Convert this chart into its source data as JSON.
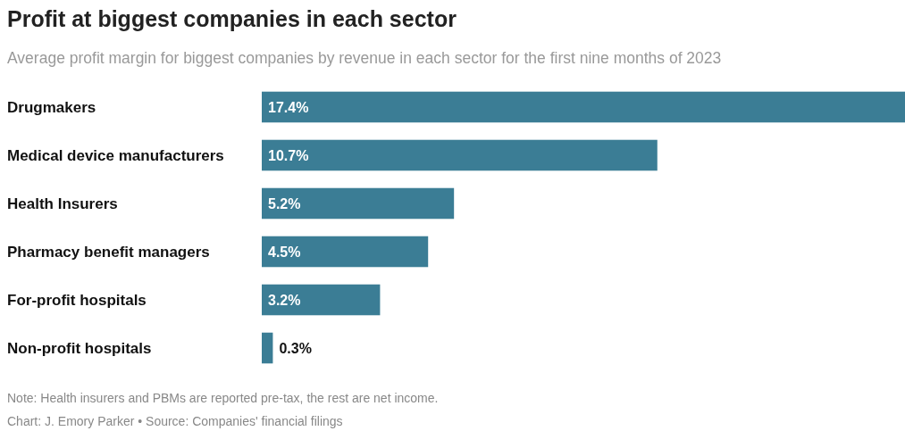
{
  "chart_data": {
    "type": "bar",
    "orientation": "horizontal",
    "title": "Profit at biggest companies in each sector",
    "subtitle": "Average profit margin for biggest companies by revenue in each sector for the first nine months of 2023",
    "categories": [
      "Drugmakers",
      "Medical device manufacturers",
      "Health Insurers",
      "Pharmacy benefit managers",
      "For-profit hospitals",
      "Non-profit hospitals"
    ],
    "values": [
      17.4,
      10.7,
      5.2,
      4.5,
      3.2,
      0.3
    ],
    "xlim": [
      0,
      17.4
    ],
    "value_labels": [
      "17.4%",
      "10.7%",
      "5.2%",
      "4.5%",
      "3.2%",
      "0.3%"
    ],
    "color": "#3b7d95",
    "annotations": [
      "Note: Health insurers and PBMs are reported pre-tax, the rest are net income.",
      "Chart: J. Emory Parker • Source: Companies' financial filings"
    ]
  }
}
